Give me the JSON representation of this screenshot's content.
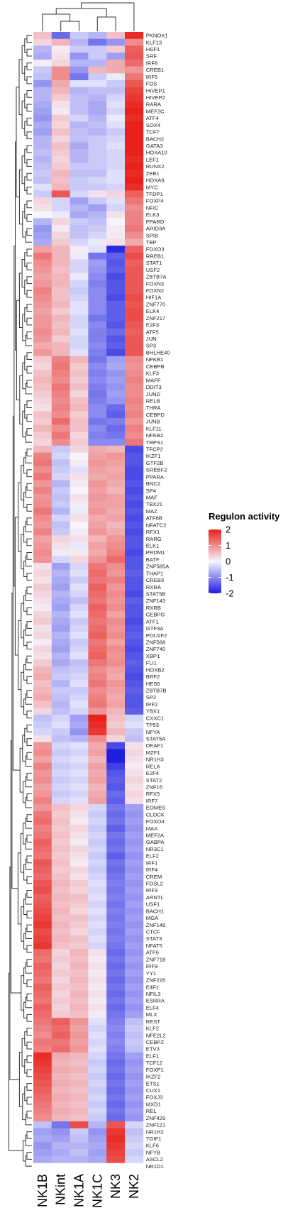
{
  "chart_data": {
    "type": "heatmap",
    "columns": [
      "NK1B",
      "NKint",
      "NK1A",
      "NK1C",
      "NK3",
      "NK2"
    ],
    "rows": [
      "PKNOX1",
      "KLF13",
      "HSF1",
      "SRF",
      "IRF8",
      "CREB1",
      "IRF5",
      "FOS",
      "HIVEP1",
      "HIVEP2",
      "RARA",
      "MEF2C",
      "ATF4",
      "SOX4",
      "TCF7",
      "BACH2",
      "GATA3",
      "HOXA10",
      "LEF1",
      "RUNX2",
      "ZEB1",
      "HOXA9",
      "MYC",
      "TFDP1",
      "FOXP4",
      "NFIC",
      "ELK3",
      "PPARD",
      "ARID3A",
      "SPIB",
      "TBP",
      "FOXO3",
      "RREB1",
      "STAT1",
      "USF2",
      "ZBTB7A",
      "FOXN3",
      "FOXN2",
      "HIF1A",
      "ZNF770",
      "ELK4",
      "ZNF217",
      "E2F3",
      "ATF5",
      "JUN",
      "SP3",
      "BHLHE40",
      "NFKB1",
      "CEBPB",
      "KLF3",
      "MAFF",
      "DDIT3",
      "JUND",
      "RELB",
      "THRA",
      "CEBPD",
      "JUNB",
      "KLF11",
      "NFKB2",
      "TRPS1",
      "TFCP2",
      "IKZF1",
      "GTF2B",
      "SREBF2",
      "PPARA",
      "BNC2",
      "SP4",
      "MAF",
      "TBX21",
      "MAZ",
      "ATF6B",
      "NFATC2",
      "RFX1",
      "RARG",
      "ELK1",
      "PRDM1",
      "BATF",
      "ZNF585A",
      "THAP1",
      "CREB3",
      "RXRA",
      "STAT5B",
      "ZNF143",
      "RXRB",
      "CEBPG",
      "ATF1",
      "GTF3A",
      "POU2F2",
      "ZNF568",
      "ZNF740",
      "XBP1",
      "FLI1",
      "HOXB2",
      "BRF2",
      "HES6",
      "ZBTB7B",
      "SP2",
      "IRF2",
      "YBX1",
      "CXXC1",
      "TP53",
      "NFYA",
      "STAT5A",
      "DEAF1",
      "MZF1",
      "NR1H3",
      "RELA",
      "E2F4",
      "STAT2",
      "ZNF16",
      "RFX5",
      "IRF7",
      "EOMES",
      "CLOCK",
      "FOXO4",
      "MAX",
      "MEF2A",
      "GABPA",
      "NR3C1",
      "ELF2",
      "IRF1",
      "IRF4",
      "CREM",
      "FOSL2",
      "IRF3",
      "ARNTL",
      "USF1",
      "BACH1",
      "MGA",
      "ZNF148",
      "CTCF",
      "STAT3",
      "NFAT5",
      "ATF6",
      "ZNF718",
      "IRF9",
      "YY1",
      "ZNF226",
      "E4F1",
      "NFIL3",
      "ESRRA",
      "ELF4",
      "MLX",
      "REST",
      "KLF2",
      "NFE2L2",
      "CEBPZ",
      "ETV3",
      "ELF1",
      "TCF12",
      "FOXP1",
      "IKZF2",
      "ETS1",
      "CUX1",
      "FOXJ3",
      "MXD1",
      "REL",
      "ZNF429",
      "ZNF121",
      "NR1H2",
      "TGIF1",
      "KLF6",
      "NFYB",
      "ASCL2",
      "NR1D1"
    ],
    "values": [
      [
        0.5,
        -1.3,
        -0.4,
        -0.6,
        0.5,
        1.9
      ],
      [
        0.3,
        0.6,
        -0.6,
        -1.2,
        -0.9,
        1.0
      ],
      [
        -0.6,
        0.1,
        -0.4,
        -0.4,
        0.4,
        1.4
      ],
      [
        -0.7,
        0.2,
        -0.9,
        -0.4,
        -0.8,
        1.5
      ],
      [
        0.1,
        0.3,
        -0.6,
        -0.6,
        0.7,
        1.3
      ],
      [
        -0.4,
        1.0,
        -0.9,
        0.6,
        0.7,
        0.9
      ],
      [
        -0.5,
        1.0,
        -1.2,
        -0.4,
        -0.1,
        1.2
      ],
      [
        -0.9,
        0.7,
        -0.2,
        -0.2,
        -0.4,
        1.5
      ],
      [
        -0.6,
        0.6,
        -0.6,
        -0.5,
        -0.5,
        1.7
      ],
      [
        -0.6,
        0.4,
        -0.5,
        -0.6,
        -0.3,
        1.8
      ],
      [
        -0.7,
        0.2,
        -0.5,
        -0.7,
        -0.2,
        1.9
      ],
      [
        -0.8,
        0.1,
        -0.5,
        -0.7,
        -0.3,
        2.0
      ],
      [
        -0.9,
        0.4,
        -0.3,
        -0.6,
        -0.1,
        1.9
      ],
      [
        -0.7,
        0.3,
        -0.6,
        -0.5,
        -0.2,
        2.0
      ],
      [
        -0.8,
        0.5,
        -0.5,
        -0.6,
        -0.4,
        2.0
      ],
      [
        -0.6,
        0.3,
        -0.5,
        -0.4,
        -0.3,
        2.0
      ],
      [
        -0.6,
        0.5,
        -0.7,
        -0.4,
        -0.2,
        2.0
      ],
      [
        -0.5,
        0.4,
        -0.6,
        -0.4,
        -0.3,
        2.0
      ],
      [
        -0.6,
        0.3,
        -0.6,
        -0.4,
        -0.3,
        1.9
      ],
      [
        -0.5,
        0.4,
        -0.4,
        -0.4,
        -0.3,
        2.0
      ],
      [
        -0.4,
        0.6,
        -0.5,
        -0.5,
        -0.2,
        1.9
      ],
      [
        -0.5,
        0.5,
        -0.4,
        -0.3,
        -0.2,
        2.0
      ],
      [
        -0.2,
        0.6,
        -0.4,
        -0.4,
        -0.3,
        1.9
      ],
      [
        -0.4,
        1.5,
        -0.3,
        0.2,
        0.3,
        1.4
      ],
      [
        0.3,
        -0.3,
        -0.8,
        -0.4,
        -0.2,
        1.2
      ],
      [
        0.2,
        -0.3,
        -0.6,
        -0.8,
        -0.3,
        1.0
      ],
      [
        0.0,
        -0.1,
        -0.7,
        -0.6,
        0.2,
        1.1
      ],
      [
        -0.6,
        0.3,
        -0.4,
        -0.5,
        0.0,
        1.1
      ],
      [
        -0.9,
        0.1,
        -0.5,
        -0.4,
        0.1,
        1.2
      ],
      [
        -0.8,
        0.3,
        -0.5,
        -0.3,
        0.1,
        1.0
      ],
      [
        -0.7,
        0.4,
        -0.3,
        -0.1,
        0.2,
        0.7
      ],
      [
        0.8,
        0.6,
        0.1,
        -0.2,
        -1.9,
        1.4
      ],
      [
        1.2,
        0.6,
        -0.1,
        -1.2,
        -1.4,
        1.6
      ],
      [
        1.0,
        0.6,
        -0.3,
        -0.8,
        -1.5,
        1.4
      ],
      [
        0.9,
        0.5,
        -0.3,
        -0.9,
        -1.4,
        1.5
      ],
      [
        0.8,
        0.6,
        -0.1,
        -1.0,
        -1.6,
        1.5
      ],
      [
        0.9,
        0.6,
        -0.3,
        -1.1,
        -1.5,
        1.5
      ],
      [
        1.1,
        0.5,
        -0.4,
        -1.0,
        -1.5,
        1.5
      ],
      [
        1.0,
        0.5,
        -0.3,
        -1.0,
        -1.6,
        1.6
      ],
      [
        0.9,
        0.6,
        -0.2,
        -1.0,
        -1.4,
        1.5
      ],
      [
        0.8,
        0.4,
        -0.2,
        -1.0,
        -1.4,
        1.6
      ],
      [
        0.9,
        0.6,
        -0.3,
        -1.2,
        -1.4,
        1.6
      ],
      [
        0.9,
        0.5,
        -0.3,
        -1.0,
        -1.5,
        1.5
      ],
      [
        1.0,
        0.6,
        -0.2,
        -1.1,
        -1.3,
        1.4
      ],
      [
        0.9,
        0.4,
        -0.3,
        -1.1,
        -1.5,
        1.5
      ],
      [
        0.7,
        0.6,
        -0.3,
        -1.0,
        -1.4,
        1.5
      ],
      [
        0.9,
        0.6,
        -0.2,
        -1.1,
        -1.6,
        1.5
      ],
      [
        0.4,
        1.1,
        0.6,
        -1.2,
        -0.8,
        1.0
      ],
      [
        0.3,
        1.2,
        0.4,
        -1.0,
        -0.7,
        0.9
      ],
      [
        0.5,
        1.1,
        0.5,
        -1.1,
        -0.9,
        1.0
      ],
      [
        0.6,
        1.0,
        0.4,
        -1.0,
        -0.8,
        1.1
      ],
      [
        0.5,
        1.2,
        0.5,
        -1.1,
        -0.9,
        1.0
      ],
      [
        0.4,
        1.1,
        0.3,
        -1.2,
        -0.8,
        1.0
      ],
      [
        0.3,
        1.0,
        0.5,
        -1.1,
        -0.9,
        1.1
      ],
      [
        0.2,
        1.1,
        0.6,
        -1.0,
        -1.3,
        1.0
      ],
      [
        0.5,
        1.0,
        0.4,
        -1.0,
        -1.4,
        1.1
      ],
      [
        0.4,
        1.3,
        0.5,
        -1.2,
        -1.1,
        0.9
      ],
      [
        0.6,
        1.0,
        0.5,
        -1.0,
        -1.3,
        1.1
      ],
      [
        0.4,
        1.2,
        0.3,
        -1.1,
        -1.2,
        1.0
      ],
      [
        0.3,
        1.0,
        0.4,
        -1.0,
        -1.0,
        1.2
      ],
      [
        0.6,
        -0.4,
        0.3,
        0.7,
        0.6,
        -1.6
      ],
      [
        1.1,
        -0.3,
        0.0,
        0.8,
        0.9,
        -1.5
      ],
      [
        1.2,
        -0.5,
        0.1,
        0.9,
        0.8,
        -1.5
      ],
      [
        1.0,
        -0.4,
        -0.2,
        0.8,
        0.7,
        -1.6
      ],
      [
        1.2,
        -0.3,
        0.2,
        0.7,
        0.8,
        -1.6
      ],
      [
        0.9,
        -0.6,
        0.1,
        0.9,
        0.7,
        -1.5
      ],
      [
        1.1,
        -0.4,
        0.0,
        0.8,
        0.6,
        -1.6
      ],
      [
        0.9,
        -0.5,
        0.2,
        0.9,
        0.8,
        -1.5
      ],
      [
        1.0,
        -0.4,
        0.1,
        0.8,
        0.8,
        -1.6
      ],
      [
        1.2,
        -0.6,
        -0.1,
        0.9,
        0.7,
        -1.5
      ],
      [
        1.0,
        -0.3,
        0.2,
        0.7,
        0.8,
        -1.6
      ],
      [
        0.9,
        -0.5,
        0.0,
        0.8,
        0.6,
        -1.5
      ],
      [
        1.1,
        -0.4,
        0.1,
        0.9,
        0.7,
        -1.6
      ],
      [
        0.8,
        0.3,
        0.2,
        0.6,
        0.9,
        -1.5
      ],
      [
        0.9,
        0.2,
        -0.1,
        0.8,
        1.0,
        -1.5
      ],
      [
        1.0,
        0.1,
        0.1,
        0.7,
        1.1,
        -1.6
      ],
      [
        0.9,
        -0.3,
        0.3,
        0.9,
        1.3,
        -1.5
      ],
      [
        0.2,
        -0.8,
        -0.3,
        1.2,
        1.0,
        -1.5
      ],
      [
        0.3,
        -0.6,
        -0.2,
        1.3,
        0.9,
        -1.4
      ],
      [
        0.2,
        -0.7,
        -0.4,
        1.2,
        1.1,
        -1.5
      ],
      [
        0.4,
        -0.8,
        -0.2,
        1.4,
        0.9,
        -1.5
      ],
      [
        0.3,
        -0.6,
        -0.3,
        1.3,
        1.0,
        -1.6
      ],
      [
        0.2,
        -0.7,
        -0.5,
        1.2,
        0.9,
        -1.4
      ],
      [
        0.1,
        -0.8,
        -0.3,
        1.4,
        1.0,
        -1.5
      ],
      [
        0.3,
        -0.6,
        -0.2,
        1.3,
        0.8,
        -1.5
      ],
      [
        0.4,
        -0.7,
        -0.4,
        1.2,
        1.0,
        -1.6
      ],
      [
        0.2,
        -0.8,
        -0.3,
        1.3,
        0.9,
        -1.5
      ],
      [
        0.3,
        -0.6,
        -0.2,
        1.4,
        1.0,
        -1.4
      ],
      [
        0.1,
        -0.7,
        -0.4,
        1.2,
        0.8,
        -1.5
      ],
      [
        0.3,
        -0.8,
        -0.3,
        1.3,
        1.0,
        -1.6
      ],
      [
        0.2,
        -0.6,
        -0.2,
        1.4,
        0.9,
        -1.5
      ],
      [
        0.4,
        -0.7,
        -0.5,
        1.2,
        1.0,
        -1.4
      ],
      [
        0.6,
        -0.5,
        -0.4,
        1.0,
        0.8,
        -1.5
      ],
      [
        0.7,
        -0.4,
        -0.3,
        1.1,
        0.7,
        -1.6
      ],
      [
        0.5,
        -0.6,
        -0.2,
        1.2,
        0.9,
        -1.5
      ],
      [
        0.6,
        -0.4,
        -0.4,
        1.0,
        0.8,
        -1.4
      ],
      [
        0.7,
        -0.5,
        -0.3,
        1.1,
        0.7,
        -1.5
      ],
      [
        0.5,
        -0.6,
        -0.2,
        1.2,
        0.8,
        -1.5
      ],
      [
        0.3,
        -0.5,
        -0.3,
        0.9,
        0.6,
        -1.4
      ],
      [
        -0.5,
        -0.3,
        -0.8,
        2.0,
        0.5,
        -0.3
      ],
      [
        -0.4,
        -0.2,
        -0.7,
        1.9,
        0.4,
        -0.2
      ],
      [
        -0.3,
        -0.4,
        -0.9,
        1.8,
        0.6,
        -0.4
      ],
      [
        0.2,
        -0.5,
        -0.6,
        1.0,
        0.3,
        -0.5
      ],
      [
        0.9,
        -0.3,
        -0.2,
        0.7,
        -1.6,
        0.2
      ],
      [
        1.0,
        -0.4,
        -0.3,
        0.8,
        -2.0,
        0.3
      ],
      [
        0.8,
        -0.3,
        -0.2,
        0.6,
        -2.0,
        0.2
      ],
      [
        1.1,
        -0.4,
        -0.3,
        0.8,
        -1.7,
        0.1
      ],
      [
        0.9,
        -0.3,
        -0.2,
        0.7,
        -1.5,
        0.2
      ],
      [
        1.0,
        -0.4,
        -0.3,
        0.8,
        -1.4,
        0.3
      ],
      [
        0.8,
        -0.3,
        -0.2,
        0.6,
        -1.5,
        0.2
      ],
      [
        0.9,
        -0.4,
        -0.3,
        0.7,
        -1.3,
        0.3
      ],
      [
        1.1,
        -0.3,
        -0.2,
        0.8,
        -1.4,
        0.2
      ],
      [
        0.9,
        0.5,
        0.3,
        -0.3,
        -1.2,
        -0.8
      ],
      [
        1.2,
        0.4,
        0.2,
        -0.4,
        -1.3,
        -0.9
      ],
      [
        1.3,
        0.5,
        0.1,
        -0.3,
        -1.2,
        -0.8
      ],
      [
        1.1,
        0.4,
        0.3,
        -0.4,
        -1.4,
        -0.9
      ],
      [
        1.2,
        0.5,
        0.2,
        -0.3,
        -1.2,
        -0.8
      ],
      [
        1.4,
        0.4,
        0.1,
        -0.4,
        -1.3,
        -0.9
      ],
      [
        1.3,
        0.5,
        0.3,
        -0.3,
        -1.2,
        -0.8
      ],
      [
        1.2,
        0.4,
        0.2,
        -0.4,
        -1.4,
        -0.9
      ],
      [
        1.5,
        0.5,
        0.1,
        -0.3,
        -1.2,
        -0.8
      ],
      [
        1.4,
        0.4,
        0.3,
        -0.4,
        -1.3,
        -0.9
      ],
      [
        1.3,
        0.5,
        0.2,
        -0.3,
        -1.2,
        -0.8
      ],
      [
        1.5,
        0.6,
        0.4,
        -0.2,
        -1.1,
        -0.9
      ],
      [
        1.6,
        0.5,
        0.3,
        -0.3,
        -1.2,
        -0.8
      ],
      [
        1.4,
        0.6,
        0.5,
        -0.2,
        -1.1,
        -0.9
      ],
      [
        1.5,
        0.5,
        0.4,
        -0.3,
        -1.2,
        -0.8
      ],
      [
        1.6,
        0.6,
        0.3,
        -0.2,
        -1.1,
        -0.9
      ],
      [
        1.7,
        0.5,
        0.5,
        -0.3,
        -1.2,
        -0.8
      ],
      [
        1.8,
        0.6,
        0.4,
        -0.2,
        -1.1,
        -0.9
      ],
      [
        1.6,
        0.5,
        0.3,
        -0.3,
        -1.2,
        -0.8
      ],
      [
        1.7,
        0.6,
        0.5,
        -0.2,
        -1.1,
        -0.9
      ],
      [
        1.8,
        0.5,
        0.4,
        -0.3,
        -1.2,
        -0.8
      ],
      [
        1.3,
        0.3,
        0.6,
        0.2,
        -1.3,
        -0.9
      ],
      [
        1.2,
        0.4,
        0.5,
        0.1,
        -1.2,
        -0.8
      ],
      [
        1.4,
        0.3,
        0.6,
        0.2,
        -1.3,
        -0.9
      ],
      [
        1.3,
        0.4,
        0.5,
        0.1,
        -1.2,
        -0.8
      ],
      [
        1.2,
        0.3,
        0.6,
        0.2,
        -1.3,
        -0.9
      ],
      [
        1.4,
        0.4,
        0.5,
        0.1,
        -1.2,
        -0.8
      ],
      [
        1.3,
        0.3,
        0.6,
        0.2,
        -1.3,
        -0.9
      ],
      [
        1.2,
        0.4,
        0.5,
        0.1,
        -1.2,
        -0.8
      ],
      [
        1.4,
        0.3,
        0.6,
        0.2,
        -1.3,
        -0.9
      ],
      [
        1.3,
        0.4,
        0.5,
        0.1,
        -1.2,
        -0.8
      ],
      [
        1.2,
        1.4,
        0.9,
        -0.2,
        -1.1,
        -0.5
      ],
      [
        1.1,
        1.3,
        0.8,
        -0.3,
        -1.0,
        -0.4
      ],
      [
        1.0,
        1.4,
        0.9,
        -0.2,
        -1.1,
        -0.5
      ],
      [
        1.2,
        1.2,
        0.8,
        -0.3,
        -1.0,
        -0.4
      ],
      [
        1.1,
        1.3,
        0.9,
        -0.2,
        -1.1,
        -0.5
      ],
      [
        1.9,
        0.7,
        0.6,
        -0.3,
        -1.2,
        -0.8
      ],
      [
        1.8,
        0.6,
        0.5,
        -0.4,
        -1.3,
        -0.9
      ],
      [
        1.7,
        0.7,
        0.6,
        -0.3,
        -1.2,
        -0.8
      ],
      [
        1.6,
        0.6,
        0.5,
        -0.4,
        -1.3,
        -0.9
      ],
      [
        1.5,
        0.7,
        0.6,
        -0.3,
        -1.2,
        -0.8
      ],
      [
        1.4,
        0.6,
        0.5,
        -0.4,
        -1.3,
        -0.9
      ],
      [
        1.3,
        0.7,
        0.6,
        -0.3,
        -1.2,
        -0.8
      ],
      [
        1.2,
        0.6,
        0.5,
        -0.4,
        -1.3,
        -0.9
      ],
      [
        1.1,
        0.7,
        0.6,
        -0.3,
        -1.2,
        -0.8
      ],
      [
        1.0,
        0.6,
        0.5,
        -0.4,
        -1.3,
        -0.9
      ],
      [
        -0.5,
        -1.2,
        1.6,
        -0.6,
        1.5,
        -0.3
      ],
      [
        -0.8,
        -0.9,
        -0.4,
        -0.9,
        1.8,
        -0.5
      ],
      [
        -0.7,
        -0.8,
        -0.5,
        -0.8,
        1.9,
        -0.4
      ],
      [
        -0.9,
        -0.6,
        -0.6,
        -0.7,
        1.8,
        -0.3
      ],
      [
        -0.8,
        -0.7,
        -0.5,
        -0.8,
        1.7,
        -0.4
      ],
      [
        -0.7,
        -0.6,
        -0.6,
        -0.7,
        1.6,
        -0.3
      ]
    ],
    "color_scale": {
      "min": -2,
      "mid": 0,
      "max": 2,
      "low": "#1f1fe0",
      "mid_color": "#f5f5ff",
      "high": "#e8221b"
    },
    "legend": {
      "title": "Regulon activity",
      "ticks": [
        2,
        1,
        0,
        -1,
        -2
      ],
      "placement": "right"
    },
    "row_dendrogram": "left",
    "column_dendrogram": "top"
  }
}
